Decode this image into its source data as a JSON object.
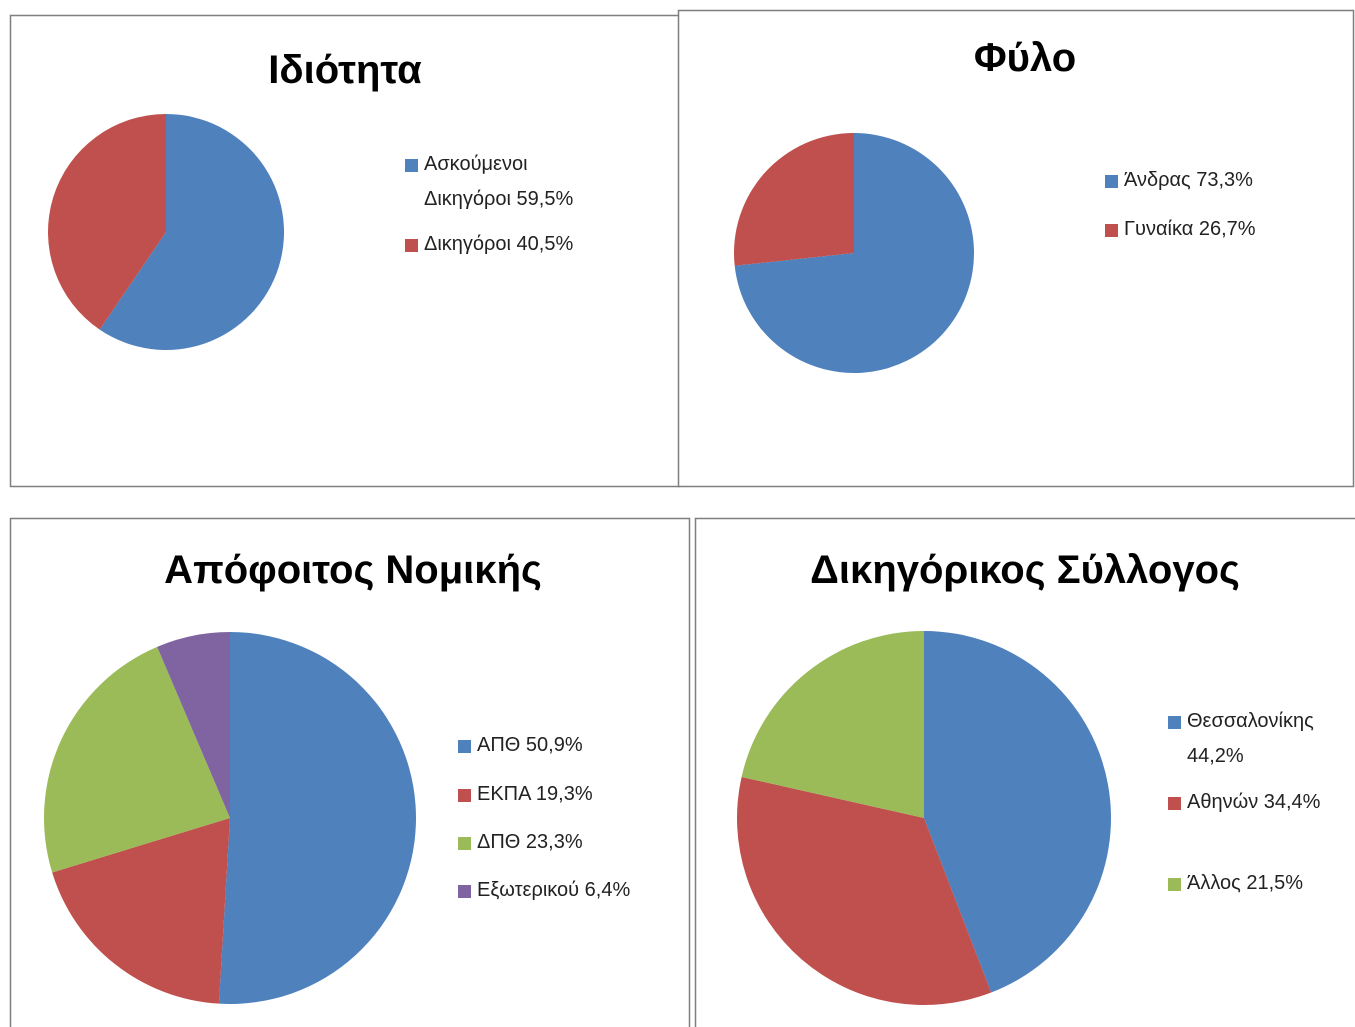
{
  "chart_data": [
    {
      "type": "pie",
      "title": "Ιδιότητα",
      "categories": [
        "Ασκούμενοι Δικηγόροι 59,5%",
        "Δικηγόροι 40,5%"
      ],
      "values": [
        59.5,
        40.5
      ],
      "colors": [
        "#4f81bd",
        "#c0504d"
      ]
    },
    {
      "type": "pie",
      "title": "Φύλο",
      "categories": [
        "Άνδρας 73,3%",
        "Γυναίκα 26,7%"
      ],
      "values": [
        73.3,
        26.7
      ],
      "colors": [
        "#4f81bd",
        "#c0504d"
      ]
    },
    {
      "type": "pie",
      "title": "Απόφοιτος Νομικής",
      "categories": [
        "ΑΠΘ 50,9%",
        "ΕΚΠΑ 19,3%",
        "ΔΠΘ 23,3%",
        "Εξωτερικού 6,4%"
      ],
      "values": [
        50.9,
        19.3,
        23.3,
        6.4
      ],
      "colors": [
        "#4f81bd",
        "#c0504d",
        "#9bbb59",
        "#8064a2"
      ]
    },
    {
      "type": "pie",
      "title": "Δικηγόρικος Σύλλογος",
      "categories": [
        "Θεσσαλονίκης 44,2%",
        "Αθηνών 34,4%",
        "Άλλος 21,5%"
      ],
      "values": [
        44.2,
        34.4,
        21.5
      ],
      "colors": [
        "#4f81bd",
        "#c0504d",
        "#9bbb59"
      ]
    }
  ]
}
